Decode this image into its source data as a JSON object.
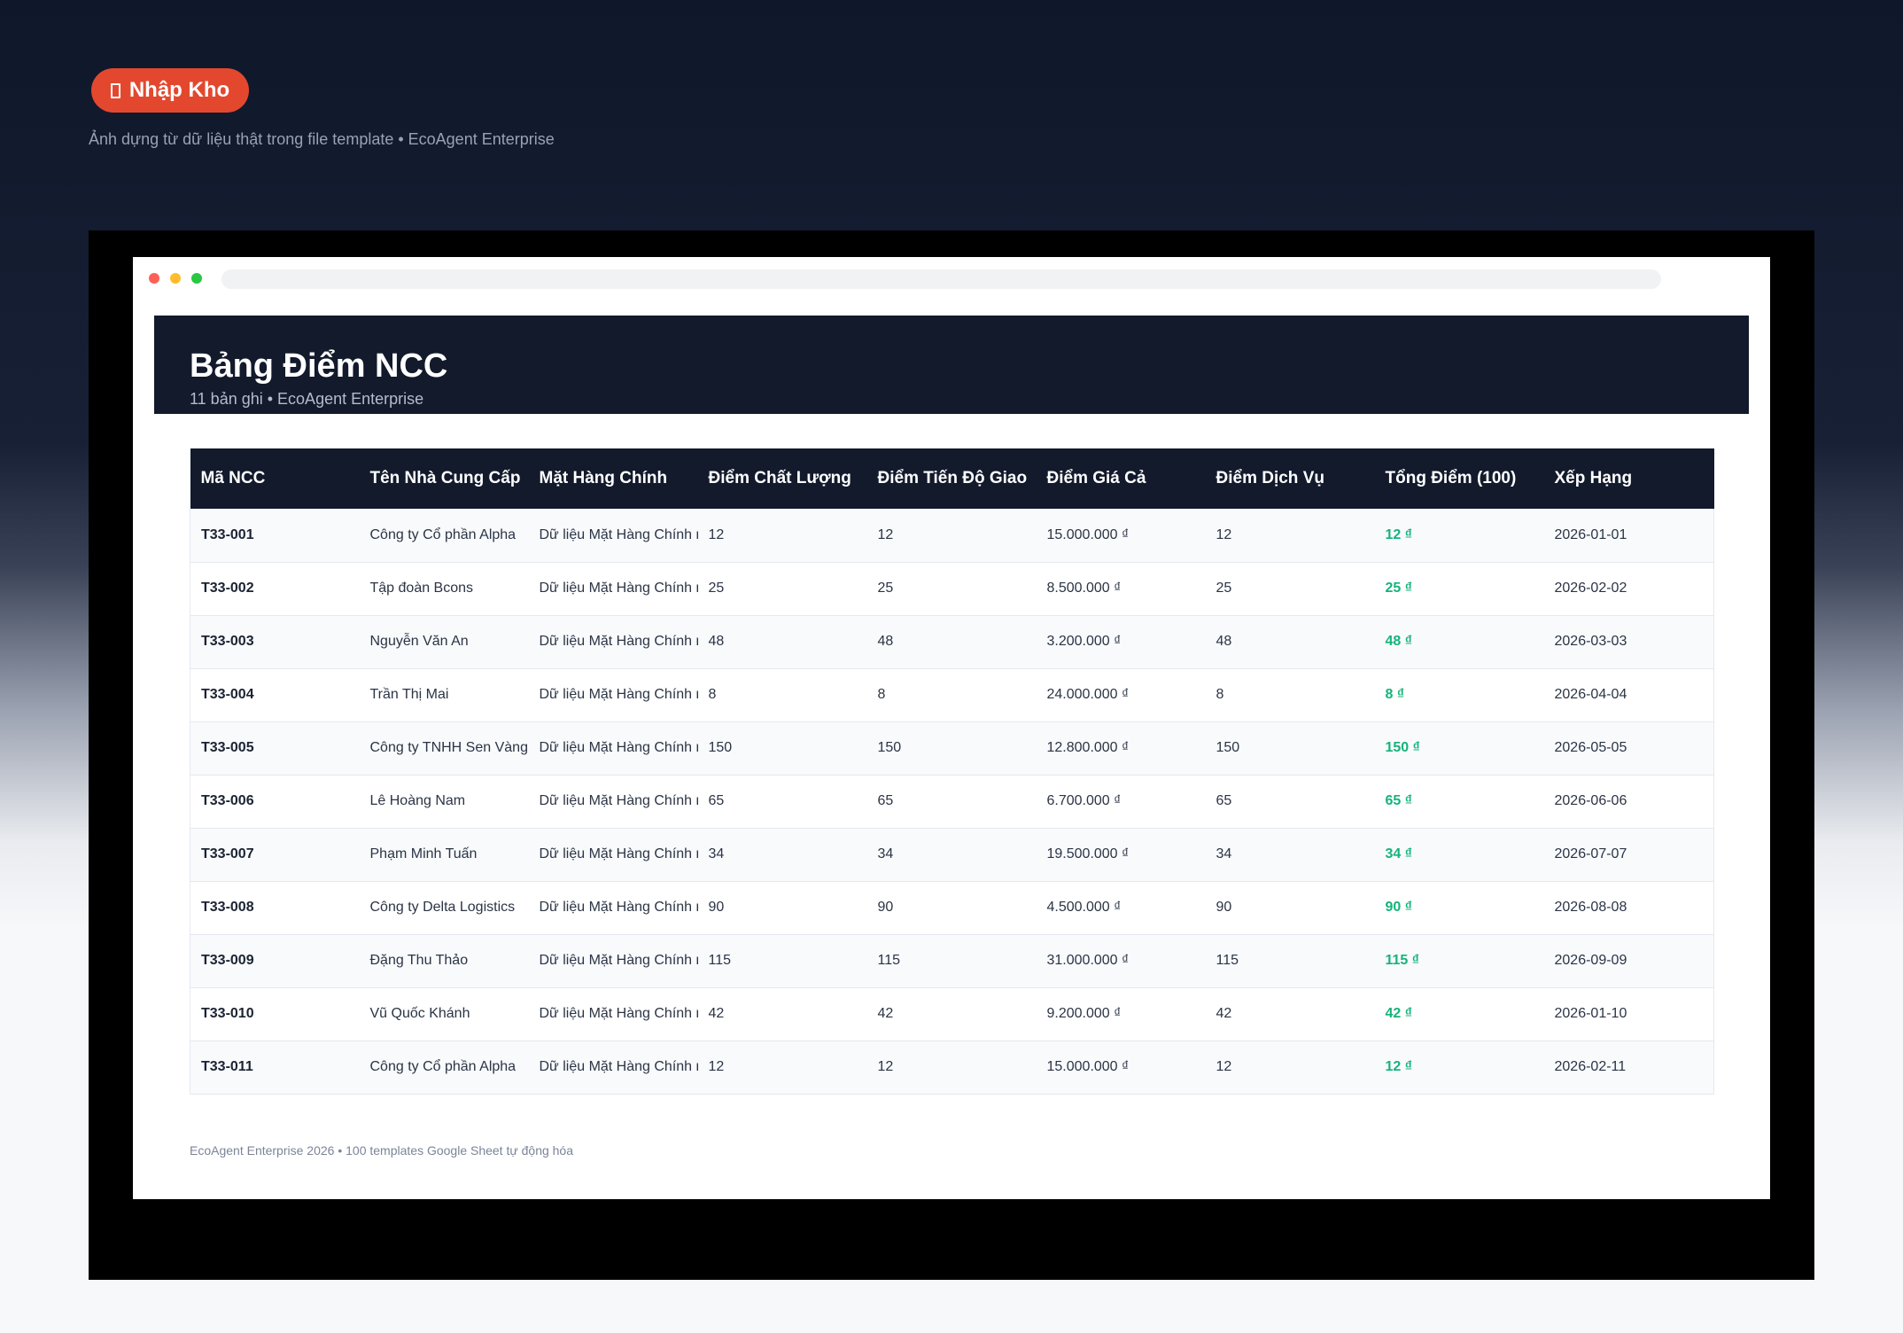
{
  "badge": {
    "icon": "clipboard-icon",
    "label": "Nhập Kho",
    "color": "#e3482f"
  },
  "subtitle": "Ảnh dựng từ dữ liệu thật trong file template • EcoAgent Enterprise",
  "sheet": {
    "title": "Bảng Điểm NCC",
    "meta": "11 bản ghi • EcoAgent Enterprise",
    "columns": [
      "Mã NCC",
      "Tên Nhà Cung Cấp",
      "Mặt Hàng Chính",
      "Điểm Chất Lượng",
      "Điểm Tiến Độ Giao",
      "Điểm Giá Cả",
      "Điểm Dịch Vụ",
      "Tổng Điểm (100)",
      "Xếp Hạng"
    ],
    "rows": [
      [
        "T33-001",
        "Công ty Cổ phần Alpha",
        "Dữ liệu Mặt Hàng Chính m",
        "12",
        "12",
        "15.000.000 ₫",
        "12",
        "12 ₫",
        "2026-01-01"
      ],
      [
        "T33-002",
        "Tập đoàn Bcons",
        "Dữ liệu Mặt Hàng Chính m",
        "25",
        "25",
        "8.500.000 ₫",
        "25",
        "25 ₫",
        "2026-02-02"
      ],
      [
        "T33-003",
        "Nguyễn Văn An",
        "Dữ liệu Mặt Hàng Chính m",
        "48",
        "48",
        "3.200.000 ₫",
        "48",
        "48 ₫",
        "2026-03-03"
      ],
      [
        "T33-004",
        "Trần Thị Mai",
        "Dữ liệu Mặt Hàng Chính m",
        "8",
        "8",
        "24.000.000 ₫",
        "8",
        "8 ₫",
        "2026-04-04"
      ],
      [
        "T33-005",
        "Công ty TNHH Sen Vàng",
        "Dữ liệu Mặt Hàng Chính m",
        "150",
        "150",
        "12.800.000 ₫",
        "150",
        "150 ₫",
        "2026-05-05"
      ],
      [
        "T33-006",
        "Lê Hoàng Nam",
        "Dữ liệu Mặt Hàng Chính m",
        "65",
        "65",
        "6.700.000 ₫",
        "65",
        "65 ₫",
        "2026-06-06"
      ],
      [
        "T33-007",
        "Phạm Minh Tuấn",
        "Dữ liệu Mặt Hàng Chính m",
        "34",
        "34",
        "19.500.000 ₫",
        "34",
        "34 ₫",
        "2026-07-07"
      ],
      [
        "T33-008",
        "Công ty Delta Logistics",
        "Dữ liệu Mặt Hàng Chính m",
        "90",
        "90",
        "4.500.000 ₫",
        "90",
        "90 ₫",
        "2026-08-08"
      ],
      [
        "T33-009",
        "Đặng Thu Thảo",
        "Dữ liệu Mặt Hàng Chính m",
        "115",
        "115",
        "31.000.000 ₫",
        "115",
        "115 ₫",
        "2026-09-09"
      ],
      [
        "T33-010",
        "Vũ Quốc Khánh",
        "Dữ liệu Mặt Hàng Chính m",
        "42",
        "42",
        "9.200.000 ₫",
        "42",
        "42 ₫",
        "2026-01-10"
      ],
      [
        "T33-011",
        "Công ty Cổ phần Alpha",
        "Dữ liệu Mặt Hàng Chính m",
        "12",
        "12",
        "15.000.000 ₫",
        "12",
        "12 ₫",
        "2026-02-11"
      ]
    ]
  },
  "footer": "EcoAgent Enterprise 2026 • 100 templates Google Sheet tự động hóa",
  "colors": {
    "header": "#121a2c",
    "total": "#16b37a",
    "background": "#0f172a"
  }
}
